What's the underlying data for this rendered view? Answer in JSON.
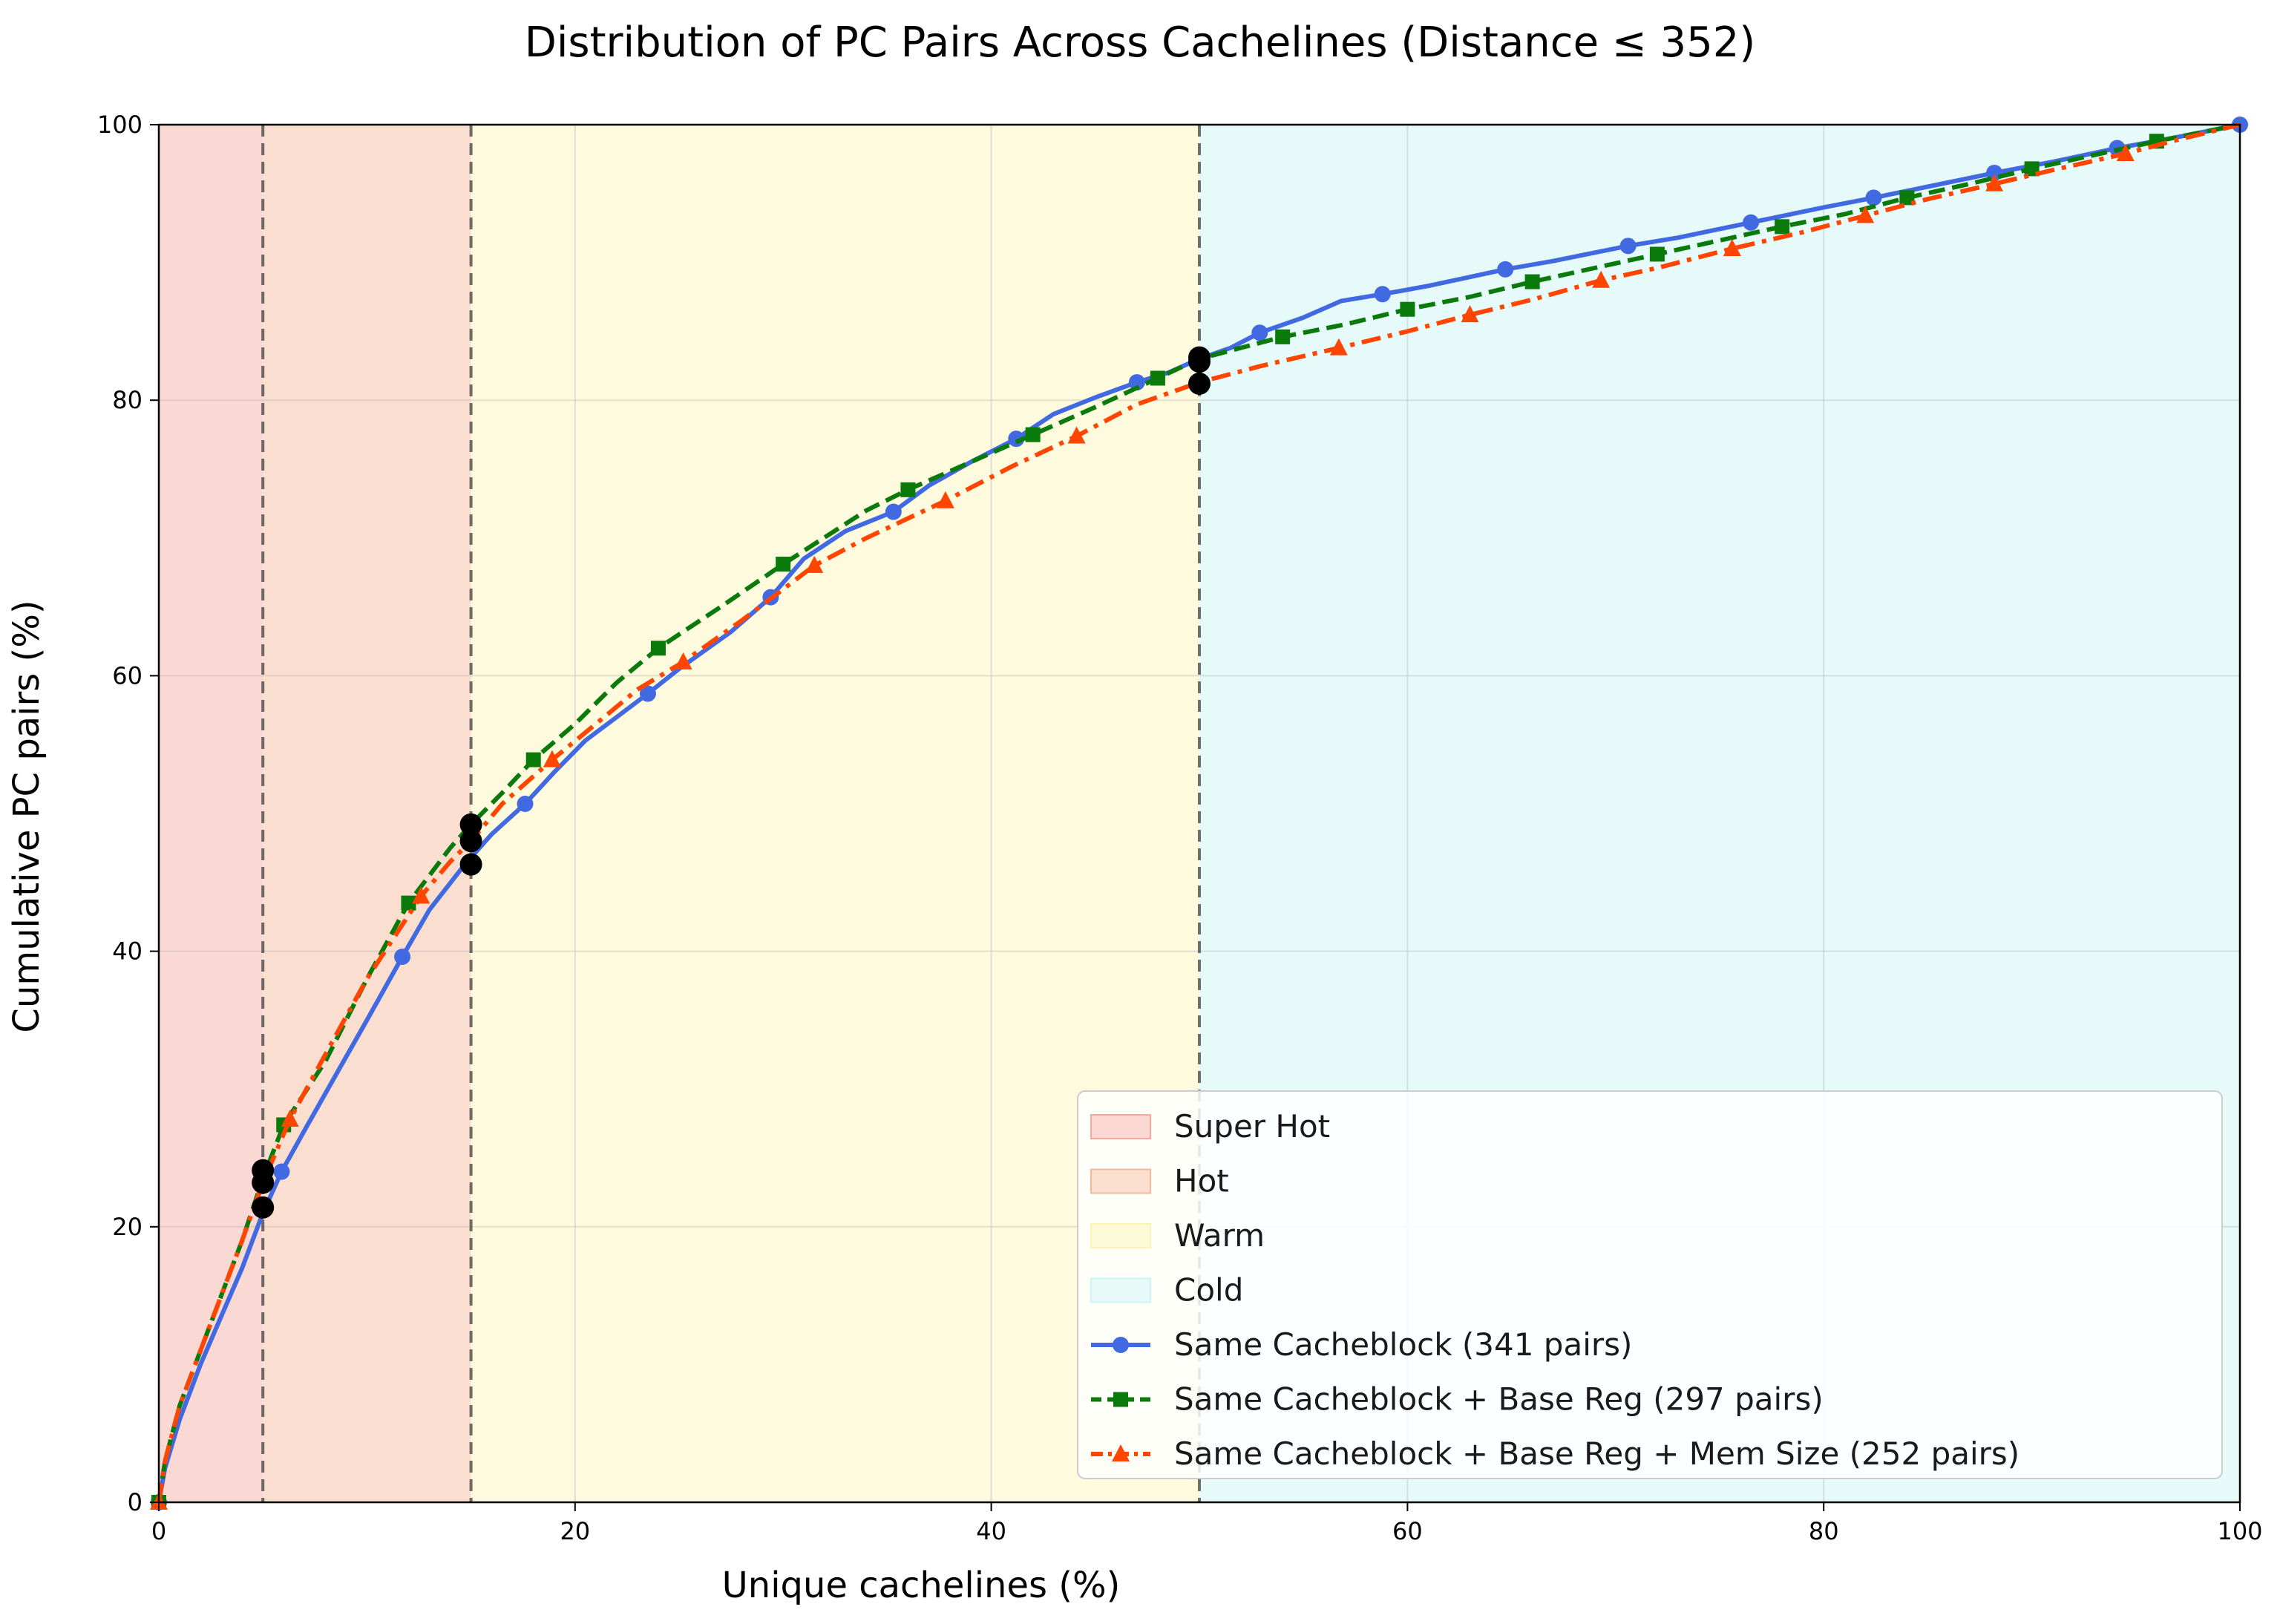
{
  "chart_data": {
    "type": "line",
    "title": "Distribution of PC Pairs Across Cachelines (Distance ≤ 352)",
    "xlabel": "Unique cachelines (%)",
    "ylabel": "Cumulative PC pairs (%)",
    "xlim": [
      0,
      100
    ],
    "ylim": [
      0,
      100
    ],
    "xticks": [
      0,
      20,
      40,
      60,
      80,
      100
    ],
    "yticks": [
      0,
      20,
      40,
      60,
      80,
      100
    ],
    "grid": true,
    "legend_position": "lower-right",
    "regions": [
      {
        "name": "Super Hot",
        "x0": 0,
        "x1": 5,
        "color": "#f4a9a0"
      },
      {
        "name": "Hot",
        "x0": 5,
        "x1": 15,
        "color": "#f5b99a"
      },
      {
        "name": "Warm",
        "x0": 15,
        "x1": 50,
        "color": "#faf3b4"
      },
      {
        "name": "Cold",
        "x0": 50,
        "x1": 100,
        "color": "#c9f5f5"
      }
    ],
    "boundaries": [
      5,
      15,
      50
    ],
    "series": [
      {
        "name": "Same Cacheblock (341 pairs)",
        "color": "#4169e1",
        "dash": "solid",
        "marker": "circle",
        "line": [
          [
            0,
            0
          ],
          [
            0.3,
            2.5
          ],
          [
            1,
            6
          ],
          [
            2,
            10
          ],
          [
            3,
            13.5
          ],
          [
            4,
            17
          ],
          [
            5,
            21
          ],
          [
            5.9,
            24
          ],
          [
            7,
            27
          ],
          [
            8.5,
            31
          ],
          [
            10,
            35
          ],
          [
            11.7,
            39.6
          ],
          [
            13,
            43
          ],
          [
            14.7,
            46.3
          ],
          [
            16,
            48.5
          ],
          [
            17.6,
            50.7
          ],
          [
            19,
            53
          ],
          [
            20.5,
            55.3
          ],
          [
            22,
            57
          ],
          [
            23.5,
            58.7
          ],
          [
            25,
            60.5
          ],
          [
            27.5,
            63.2
          ],
          [
            29.4,
            65.7
          ],
          [
            31,
            68.5
          ],
          [
            33,
            70.5
          ],
          [
            35.3,
            71.9
          ],
          [
            37,
            73.8
          ],
          [
            39,
            75.5
          ],
          [
            41.2,
            77.2
          ],
          [
            43,
            79
          ],
          [
            45,
            80.2
          ],
          [
            47,
            81.3
          ],
          [
            48.5,
            82
          ],
          [
            50,
            83
          ],
          [
            51.5,
            83.8
          ],
          [
            52.9,
            84.9
          ],
          [
            55,
            86
          ],
          [
            56.8,
            87.2
          ],
          [
            58.8,
            87.7
          ],
          [
            61,
            88.3
          ],
          [
            64.7,
            89.5
          ],
          [
            67,
            90.1
          ],
          [
            70.6,
            91.2
          ],
          [
            73,
            91.8
          ],
          [
            76.5,
            92.9
          ],
          [
            80,
            94
          ],
          [
            82.4,
            94.7
          ],
          [
            85,
            95.5
          ],
          [
            88.2,
            96.5
          ],
          [
            91,
            97.3
          ],
          [
            94.1,
            98.3
          ],
          [
            97,
            99.1
          ],
          [
            100,
            100
          ]
        ],
        "markers": [
          [
            0,
            0
          ],
          [
            5.9,
            24
          ],
          [
            11.7,
            39.6
          ],
          [
            17.6,
            50.7
          ],
          [
            23.5,
            58.7
          ],
          [
            29.4,
            65.7
          ],
          [
            35.3,
            71.9
          ],
          [
            41.2,
            77.2
          ],
          [
            47,
            81.3
          ],
          [
            52.9,
            84.9
          ],
          [
            58.8,
            87.7
          ],
          [
            64.7,
            89.5
          ],
          [
            70.6,
            91.2
          ],
          [
            76.5,
            92.9
          ],
          [
            82.4,
            94.7
          ],
          [
            88.2,
            96.5
          ],
          [
            94.1,
            98.3
          ],
          [
            100,
            100
          ]
        ]
      },
      {
        "name": "Same Cacheblock + Base Reg (297 pairs)",
        "color": "#0a7a0a",
        "dash": "dashed",
        "marker": "square",
        "line": [
          [
            0,
            0
          ],
          [
            0.3,
            3
          ],
          [
            1,
            7
          ],
          [
            2,
            11
          ],
          [
            3,
            15
          ],
          [
            4,
            19
          ],
          [
            5,
            23.5
          ],
          [
            6,
            27.4
          ],
          [
            8,
            32
          ],
          [
            10,
            38
          ],
          [
            12,
            43.5
          ],
          [
            14,
            47.5
          ],
          [
            15,
            49.2
          ],
          [
            16.5,
            51.5
          ],
          [
            18,
            53.9
          ],
          [
            20,
            56.5
          ],
          [
            22,
            59.5
          ],
          [
            24,
            62
          ],
          [
            27,
            65
          ],
          [
            30,
            68.1
          ],
          [
            34,
            72
          ],
          [
            36,
            73.5
          ],
          [
            39,
            75.5
          ],
          [
            42,
            77.5
          ],
          [
            45,
            79.5
          ],
          [
            48,
            81.6
          ],
          [
            50,
            83
          ],
          [
            54,
            84.6
          ],
          [
            57,
            85.5
          ],
          [
            60,
            86.6
          ],
          [
            63,
            87.5
          ],
          [
            66,
            88.6
          ],
          [
            69,
            89.6
          ],
          [
            72,
            90.6
          ],
          [
            75,
            91.6
          ],
          [
            78,
            92.6
          ],
          [
            81,
            93.5
          ],
          [
            84,
            94.7
          ],
          [
            87,
            95.7
          ],
          [
            90,
            96.8
          ],
          [
            93,
            97.8
          ],
          [
            96,
            98.8
          ],
          [
            100,
            100
          ]
        ],
        "markers": [
          [
            0,
            0
          ],
          [
            6,
            27.4
          ],
          [
            12,
            43.5
          ],
          [
            18,
            53.9
          ],
          [
            24,
            62
          ],
          [
            30,
            68.1
          ],
          [
            36,
            73.5
          ],
          [
            42,
            77.5
          ],
          [
            48,
            81.6
          ],
          [
            54,
            84.6
          ],
          [
            60,
            86.6
          ],
          [
            66,
            88.6
          ],
          [
            72,
            90.6
          ],
          [
            78,
            92.6
          ],
          [
            84,
            94.7
          ],
          [
            90,
            96.8
          ],
          [
            96,
            98.8
          ]
        ]
      },
      {
        "name": "Same Cacheblock + Base Reg + Mem Size (252 pairs)",
        "color": "#ff4500",
        "dash": "dashdot",
        "marker": "triangle",
        "line": [
          [
            0,
            0
          ],
          [
            0.3,
            3
          ],
          [
            1,
            7
          ],
          [
            2,
            11
          ],
          [
            3,
            15
          ],
          [
            4,
            19
          ],
          [
            5,
            23.2
          ],
          [
            6.3,
            27.8
          ],
          [
            8,
            32.5
          ],
          [
            10,
            38
          ],
          [
            12.6,
            44
          ],
          [
            14,
            46.5
          ],
          [
            15,
            48
          ],
          [
            16.5,
            50.7
          ],
          [
            18.9,
            53.9
          ],
          [
            21,
            56.5
          ],
          [
            23,
            59
          ],
          [
            25.2,
            61
          ],
          [
            28,
            64
          ],
          [
            31.5,
            68
          ],
          [
            34,
            70
          ],
          [
            37.8,
            72.7
          ],
          [
            41,
            75.2
          ],
          [
            44.1,
            77.4
          ],
          [
            47,
            79.7
          ],
          [
            50,
            81.3
          ],
          [
            53,
            82.5
          ],
          [
            56.7,
            83.8
          ],
          [
            60,
            85
          ],
          [
            63,
            86.2
          ],
          [
            66,
            87.3
          ],
          [
            69.3,
            88.7
          ],
          [
            72,
            89.6
          ],
          [
            75.6,
            91
          ],
          [
            79,
            92.2
          ],
          [
            82,
            93.4
          ],
          [
            85,
            94.6
          ],
          [
            88.2,
            95.7
          ],
          [
            91,
            96.7
          ],
          [
            94.5,
            97.9
          ],
          [
            97,
            98.9
          ],
          [
            100,
            100
          ]
        ],
        "markers": [
          [
            0,
            0
          ],
          [
            6.3,
            27.8
          ],
          [
            12.6,
            44
          ],
          [
            18.9,
            53.9
          ],
          [
            25.2,
            61
          ],
          [
            31.5,
            68
          ],
          [
            37.8,
            72.7
          ],
          [
            44.1,
            77.4
          ],
          [
            56.7,
            83.8
          ],
          [
            63,
            86.2
          ],
          [
            69.3,
            88.7
          ],
          [
            75.6,
            91
          ],
          [
            82,
            93.4
          ],
          [
            88.2,
            95.7
          ],
          [
            94.5,
            97.9
          ]
        ]
      }
    ],
    "threshold_points": [
      [
        5,
        24.1
      ],
      [
        5,
        23.2
      ],
      [
        5,
        21.4
      ],
      [
        15,
        49.2
      ],
      [
        15,
        48
      ],
      [
        15,
        46.3
      ],
      [
        50,
        83.1
      ],
      [
        50,
        82.8
      ],
      [
        50,
        81.2
      ]
    ]
  }
}
